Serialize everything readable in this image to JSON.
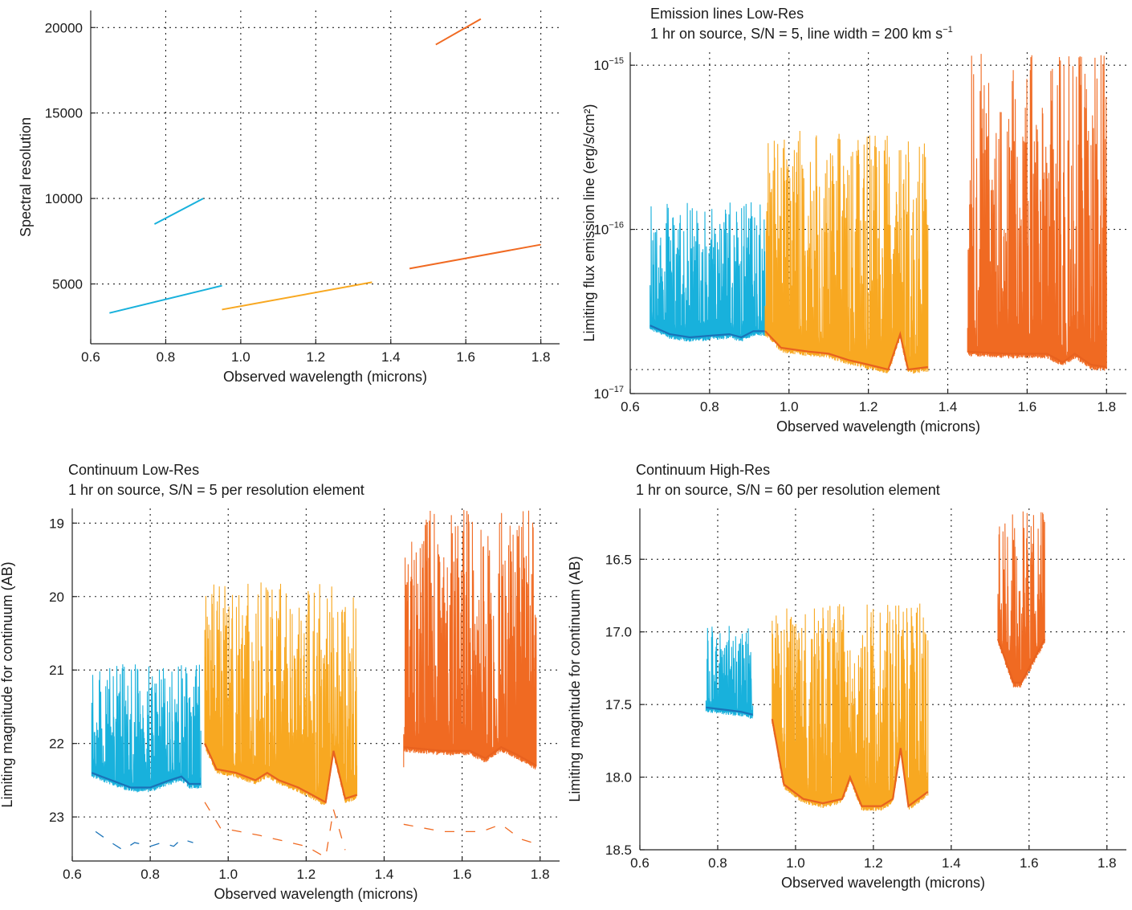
{
  "colors": {
    "cyan": "#18b1dc",
    "cyan_dark": "#1a73b8",
    "yellow": "#f8a821",
    "orange_dark": "#e8621f",
    "orange": "#f06a22"
  },
  "chart_data": [
    {
      "id": "resolution",
      "type": "line",
      "title": "",
      "subtitle": "",
      "xlabel": "Observed wavelength (microns)",
      "ylabel": "Spectral resolution",
      "xlim": [
        0.6,
        1.85
      ],
      "ylim": [
        1500,
        21000
      ],
      "xticks": [
        "0.6",
        "0.8",
        "1.0",
        "1.2",
        "1.4",
        "1.6",
        "1.8"
      ],
      "yticks": [
        "5000",
        "10000",
        "15000",
        "20000"
      ],
      "ytick_values": [
        5000,
        10000,
        15000,
        20000
      ],
      "grid": true,
      "series": [
        {
          "color": "cyan",
          "x": [
            0.65,
            0.95
          ],
          "y": [
            3300,
            4900
          ]
        },
        {
          "color": "cyan",
          "x": [
            0.77,
            0.9
          ],
          "y": [
            8500,
            10000
          ]
        },
        {
          "color": "yellow",
          "x": [
            0.95,
            1.35
          ],
          "y": [
            3500,
            5100
          ]
        },
        {
          "color": "orange",
          "x": [
            1.45,
            1.8
          ],
          "y": [
            5900,
            7300
          ]
        },
        {
          "color": "orange",
          "x": [
            1.52,
            1.64
          ],
          "y": [
            19000,
            20500
          ]
        }
      ]
    },
    {
      "id": "emission",
      "type": "line",
      "title": "Emission lines Low-Res",
      "subtitle_main": "1 hr on source, S/N = 5, line width = 200 km s",
      "subtitle_sup": "−1",
      "xlabel": "Observed wavelength (microns)",
      "ylabel": "Limiting flux emission line (erg/s/cm²)",
      "xscale": "linear",
      "yscale": "log",
      "xlim": [
        0.6,
        1.85
      ],
      "ylim": [
        1e-17,
        1.2e-15
      ],
      "xticks": [
        "0.6",
        "0.8",
        "1.0",
        "1.2",
        "1.4",
        "1.6",
        "1.8"
      ],
      "yticks": [
        {
          "base": "10",
          "exp": "−15",
          "value": 1e-15
        },
        {
          "base": "10",
          "exp": "−16",
          "value": 1e-16
        },
        {
          "base": "10",
          "exp": "−17",
          "value": 1e-17
        }
      ],
      "extra_gridlines": [
        1.4e-17
      ],
      "grid": true,
      "bands": [
        {
          "color": "cyan",
          "line_color": "cyan_dark",
          "x": [
            0.65,
            0.94
          ],
          "baseline": [
            [
              0.65,
              2.6e-17
            ],
            [
              0.7,
              2.3e-17
            ],
            [
              0.75,
              2.2e-17
            ],
            [
              0.8,
              2.25e-17
            ],
            [
              0.85,
              2.3e-17
            ],
            [
              0.88,
              2.2e-17
            ],
            [
              0.91,
              2.4e-17
            ],
            [
              0.94,
              2.4e-17
            ]
          ],
          "peak": 1.5e-16
        },
        {
          "color": "yellow",
          "line_color": "orange_dark",
          "x": [
            0.94,
            1.35
          ],
          "baseline": [
            [
              0.94,
              2.4e-17
            ],
            [
              0.98,
              1.9e-17
            ],
            [
              1.05,
              1.8e-17
            ],
            [
              1.1,
              1.75e-17
            ],
            [
              1.15,
              1.6e-17
            ],
            [
              1.2,
              1.5e-17
            ],
            [
              1.25,
              1.4e-17
            ],
            [
              1.28,
              2.3e-17
            ],
            [
              1.3,
              1.4e-17
            ],
            [
              1.35,
              1.45e-17
            ]
          ],
          "peak": 4e-16
        },
        {
          "color": "orange",
          "line_color": "orange_dark",
          "x": [
            1.45,
            1.8
          ],
          "baseline": [
            [
              1.45,
              1.8e-17
            ],
            [
              1.55,
              1.75e-17
            ],
            [
              1.65,
              1.75e-17
            ],
            [
              1.69,
              1.55e-17
            ],
            [
              1.72,
              1.75e-17
            ],
            [
              1.76,
              1.5e-17
            ],
            [
              1.8,
              1.45e-17
            ]
          ],
          "peak": 1.2e-15
        }
      ]
    },
    {
      "id": "cont_low",
      "type": "line",
      "title": "Continuum Low-Res",
      "subtitle": "1 hr on source, S/N = 5 per resolution element",
      "xlabel": "Observed wavelength (microns)",
      "ylabel": "Limiting magnitude for continuum (AB)",
      "yaxis": "inverted",
      "xlim": [
        0.6,
        1.85
      ],
      "ylim": [
        18.8,
        23.6
      ],
      "xticks": [
        "0.6",
        "0.8",
        "1.0",
        "1.2",
        "1.4",
        "1.6",
        "1.8"
      ],
      "yticks": [
        "19",
        "20",
        "21",
        "22",
        "23"
      ],
      "ytick_values": [
        19,
        20,
        21,
        22,
        23
      ],
      "grid": true,
      "bands": [
        {
          "color": "cyan",
          "line_color": "cyan_dark",
          "x": [
            0.65,
            0.93
          ],
          "baseline": [
            [
              0.65,
              22.4
            ],
            [
              0.7,
              22.5
            ],
            [
              0.75,
              22.6
            ],
            [
              0.8,
              22.6
            ],
            [
              0.85,
              22.5
            ],
            [
              0.88,
              22.45
            ],
            [
              0.9,
              22.55
            ],
            [
              0.93,
              22.55
            ]
          ],
          "peak": 20.9
        },
        {
          "color": "yellow",
          "line_color": "orange_dark",
          "x": [
            0.94,
            1.33
          ],
          "baseline": [
            [
              0.94,
              22.0
            ],
            [
              0.97,
              22.35
            ],
            [
              1.02,
              22.4
            ],
            [
              1.07,
              22.5
            ],
            [
              1.1,
              22.4
            ],
            [
              1.13,
              22.5
            ],
            [
              1.18,
              22.6
            ],
            [
              1.25,
              22.8
            ],
            [
              1.27,
              22.1
            ],
            [
              1.3,
              22.75
            ],
            [
              1.33,
              22.7
            ]
          ],
          "peak": 19.8
        },
        {
          "color": "orange",
          "line_color": "orange_dark",
          "x": [
            1.45,
            1.79
          ],
          "baseline": [
            [
              1.45,
              22.05
            ],
            [
              1.55,
              22.1
            ],
            [
              1.62,
              22.1
            ],
            [
              1.66,
              22.2
            ],
            [
              1.7,
              22.05
            ],
            [
              1.74,
              22.15
            ],
            [
              1.79,
              22.3
            ]
          ],
          "peak": 18.8
        }
      ],
      "dashed": [
        {
          "color": "cyan_dark",
          "x": [
            0.66,
            0.7,
            0.73,
            0.76,
            0.8,
            0.83,
            0.86,
            0.88,
            0.91
          ],
          "y": [
            23.2,
            23.35,
            23.45,
            23.35,
            23.4,
            23.35,
            23.4,
            23.3,
            23.35
          ]
        },
        {
          "color": "orange",
          "x": [
            0.94,
            0.98,
            1.03,
            1.08,
            1.12,
            1.16,
            1.2,
            1.25,
            1.27,
            1.3
          ],
          "y": [
            22.8,
            23.15,
            23.2,
            23.25,
            23.3,
            23.35,
            23.4,
            23.55,
            22.9,
            23.45
          ]
        },
        {
          "color": "orange",
          "x": [
            1.45,
            1.5,
            1.55,
            1.6,
            1.65,
            1.7,
            1.75,
            1.78
          ],
          "y": [
            23.1,
            23.15,
            23.2,
            23.2,
            23.2,
            23.1,
            23.3,
            23.35
          ]
        }
      ]
    },
    {
      "id": "cont_high",
      "type": "line",
      "title": "Continuum High-Res",
      "subtitle": "1 hr on source, S/N = 60 per resolution element",
      "xlabel": "Observed wavelength (microns)",
      "ylabel": "Limiting magnitude for continuum (AB)",
      "yaxis": "inverted",
      "xlim": [
        0.6,
        1.85
      ],
      "ylim": [
        16.15,
        18.5
      ],
      "xticks": [
        "0.6",
        "0.8",
        "1.0",
        "1.2",
        "1.4",
        "1.6",
        "1.8"
      ],
      "yticks": [
        "16.5",
        "17.0",
        "17.5",
        "18.0",
        "18.5"
      ],
      "ytick_values": [
        16.5,
        17.0,
        17.5,
        18.0,
        18.5
      ],
      "grid": true,
      "bands": [
        {
          "color": "cyan",
          "line_color": "cyan_dark",
          "x": [
            0.77,
            0.89
          ],
          "baseline": [
            [
              0.77,
              17.52
            ],
            [
              0.8,
              17.53
            ],
            [
              0.83,
              17.54
            ],
            [
              0.86,
              17.55
            ],
            [
              0.89,
              17.57
            ]
          ],
          "peak": 16.95
        },
        {
          "color": "yellow",
          "line_color": "orange_dark",
          "x": [
            0.94,
            1.34
          ],
          "baseline": [
            [
              0.94,
              17.6
            ],
            [
              0.97,
              18.05
            ],
            [
              1.02,
              18.15
            ],
            [
              1.07,
              18.18
            ],
            [
              1.12,
              18.15
            ],
            [
              1.14,
              18.0
            ],
            [
              1.17,
              18.2
            ],
            [
              1.22,
              18.2
            ],
            [
              1.25,
              18.15
            ],
            [
              1.27,
              17.8
            ],
            [
              1.29,
              18.2
            ],
            [
              1.34,
              18.1
            ]
          ],
          "peak": 16.8
        },
        {
          "color": "orange",
          "line_color": "orange_dark",
          "x": [
            1.52,
            1.64
          ],
          "baseline": [
            [
              1.52,
              17.05
            ],
            [
              1.54,
              17.2
            ],
            [
              1.56,
              17.35
            ],
            [
              1.58,
              17.35
            ],
            [
              1.6,
              17.25
            ],
            [
              1.62,
              17.15
            ],
            [
              1.64,
              17.05
            ]
          ],
          "peak": 16.15
        }
      ]
    }
  ]
}
